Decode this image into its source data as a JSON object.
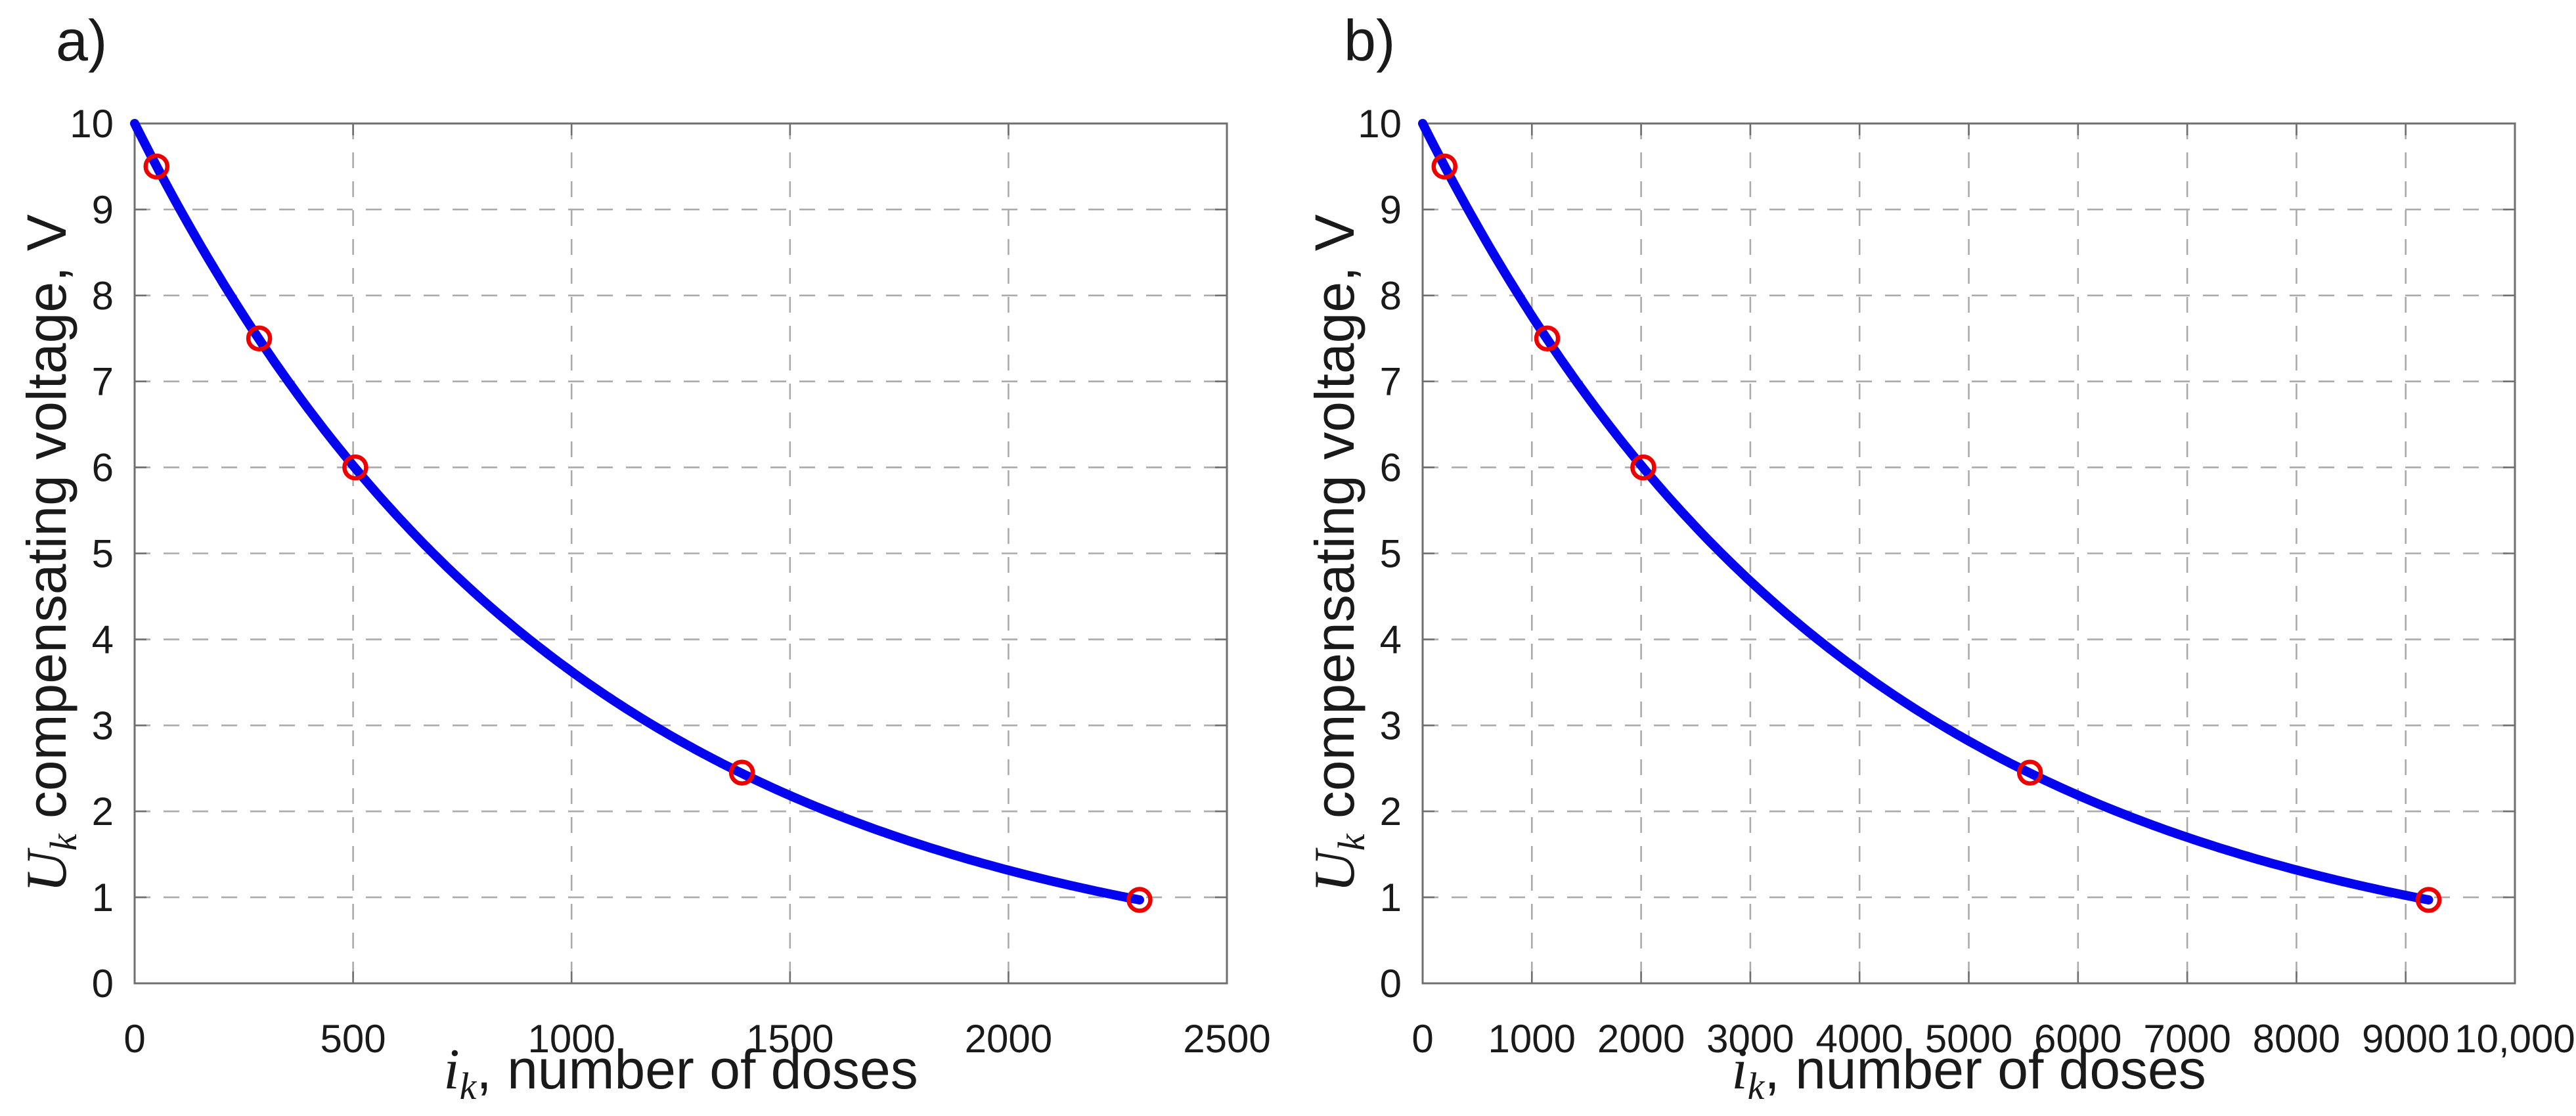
{
  "colors": {
    "background": "#ffffff",
    "curve": "#0404ee",
    "marker": "#ee0000",
    "grid": "#ababab",
    "axis_box": "#6f6f6f",
    "tick_mark": "#6f6f6f",
    "text": "#1a1a1a"
  },
  "chart_data": [
    {
      "type": "line",
      "panel_label": "a)",
      "xlabel": {
        "var": "i",
        "sub": "k",
        "rest": ", number of doses"
      },
      "ylabel": {
        "var": "U",
        "sub": "k",
        "rest": " compensating voltage, V"
      },
      "xlim": [
        0,
        2500
      ],
      "ylim": [
        0,
        10
      ],
      "xticks": [
        0,
        500,
        1000,
        1500,
        2000,
        2500
      ],
      "xtick_labels": [
        "0",
        "500",
        "1000",
        "1500",
        "2000",
        "2500"
      ],
      "yticks": [
        0,
        1,
        2,
        3,
        4,
        5,
        6,
        7,
        8,
        9,
        10
      ],
      "ytick_labels": [
        "0",
        "1",
        "2",
        "3",
        "4",
        "5",
        "6",
        "7",
        "8",
        "9",
        "10"
      ],
      "grid": "dashed",
      "legend": "none",
      "series": [
        {
          "name": "compensating-voltage-curve",
          "style": "line",
          "color": "#0404ee",
          "rule": "U = 10*exp(-i/986), 0 <= i <= 2300",
          "u_start": 10,
          "u_end": 0.97,
          "x_start": 0,
          "x_end": 2300
        },
        {
          "name": "calibration-points",
          "style": "open-circle-markers",
          "color": "#ee0000",
          "points": [
            [
              50,
              9.5
            ],
            [
              285,
              7.5
            ],
            [
              505,
              6.0
            ],
            [
              1390,
              2.45
            ],
            [
              2300,
              0.97
            ]
          ]
        }
      ]
    },
    {
      "type": "line",
      "panel_label": "b)",
      "xlabel": {
        "var": "i",
        "sub": "k",
        "rest": ", number of doses"
      },
      "ylabel": {
        "var": "U",
        "sub": "k",
        "rest": " compensating voltage, V"
      },
      "xlim": [
        0,
        10000
      ],
      "ylim": [
        0,
        10
      ],
      "xticks": [
        0,
        1000,
        2000,
        3000,
        4000,
        5000,
        6000,
        7000,
        8000,
        9000,
        10000
      ],
      "xtick_labels": [
        "0",
        "1000",
        "2000",
        "3000",
        "4000",
        "5000",
        "6000",
        "7000",
        "8000",
        "9000",
        "10,000"
      ],
      "yticks": [
        0,
        1,
        2,
        3,
        4,
        5,
        6,
        7,
        8,
        9,
        10
      ],
      "ytick_labels": [
        "0",
        "1",
        "2",
        "3",
        "4",
        "5",
        "6",
        "7",
        "8",
        "9",
        "10"
      ],
      "grid": "dashed",
      "legend": "none",
      "series": [
        {
          "name": "compensating-voltage-curve",
          "style": "line",
          "color": "#0404ee",
          "rule": "U = 10*exp(-i/3947), 0 <= i <= 9210",
          "u_start": 10,
          "u_end": 0.97,
          "x_start": 0,
          "x_end": 9210
        },
        {
          "name": "calibration-points",
          "style": "open-circle-markers",
          "color": "#ee0000",
          "points": [
            [
              200,
              9.5
            ],
            [
              1140,
              7.5
            ],
            [
              2020,
              6.0
            ],
            [
              5560,
              2.45
            ],
            [
              9210,
              0.97
            ]
          ]
        }
      ]
    }
  ]
}
